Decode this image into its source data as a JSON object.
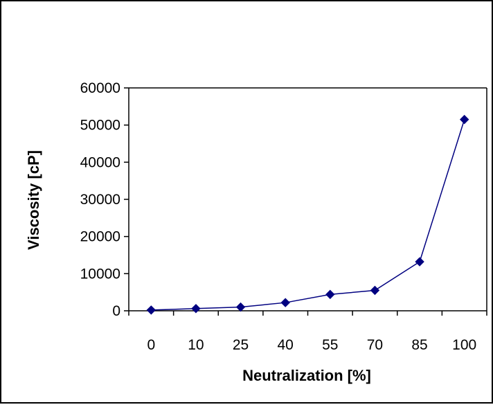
{
  "chart_data": {
    "type": "line",
    "title": "",
    "xlabel": "Neutralization [%]",
    "ylabel": "Viscosity [cP]",
    "categories": [
      "0",
      "10",
      "25",
      "40",
      "55",
      "70",
      "85",
      "100"
    ],
    "series": [
      {
        "values": [
          200,
          600,
          1000,
          2200,
          4400,
          5500,
          13200,
          51500
        ]
      }
    ],
    "ylim": [
      0,
      60000
    ],
    "yticks": [
      0,
      10000,
      20000,
      30000,
      40000,
      50000,
      60000
    ],
    "grid": false,
    "legend": "none",
    "colors": {
      "series": "#000080",
      "axis": "#000000",
      "border": "#000000"
    }
  }
}
